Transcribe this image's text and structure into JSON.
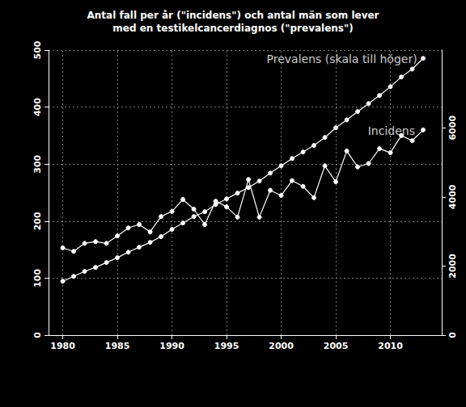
{
  "chart_data": {
    "type": "line",
    "title": "Antal fall per år (\"incidens\") och antal män som lever\nmed en testikelcancerdiagnos (\"prevalens\")",
    "x": [
      1980,
      1981,
      1982,
      1983,
      1984,
      1985,
      1986,
      1987,
      1988,
      1989,
      1990,
      1991,
      1992,
      1993,
      1994,
      1995,
      1996,
      1997,
      1998,
      1999,
      2000,
      2001,
      2002,
      2003,
      2004,
      2005,
      2006,
      2007,
      2008,
      2009,
      2010,
      2011,
      2012,
      2013
    ],
    "series": [
      {
        "name": "Incidens",
        "color": "#ffffff",
        "marker": "circle",
        "line_style": "solid",
        "values": [
          153,
          147,
          161,
          164,
          161,
          174,
          188,
          194,
          181,
          208,
          217,
          238,
          221,
          194,
          235,
          225,
          207,
          273,
          207,
          254,
          245,
          271,
          261,
          241,
          297,
          269,
          323,
          295,
          301,
          327,
          320,
          350,
          341,
          360
        ]
      },
      {
        "name": "Prevalens",
        "color": "#ffffff",
        "marker": "circle",
        "line_style": "solid",
        "axis": "y2",
        "values": [
          1560,
          1700,
          1845,
          1960,
          2100,
          2240,
          2400,
          2545,
          2685,
          2850,
          3060,
          3245,
          3430,
          3570,
          3780,
          3945,
          4110,
          4270,
          4460,
          4690,
          4900,
          5110,
          5300,
          5490,
          5720,
          6000,
          6230,
          6470,
          6700,
          6935,
          7190,
          7470,
          7700,
          8010
        ]
      }
    ],
    "xlim": [
      1978.7,
      2014.7
    ],
    "xticks": [
      1980,
      1985,
      1990,
      1995,
      2000,
      2005,
      2010
    ],
    "ylim": [
      0,
      500
    ],
    "yticks": [
      0,
      100,
      200,
      300,
      400,
      500
    ],
    "y2lim": [
      0,
      8250
    ],
    "y2ticks": [
      0,
      2000,
      4000,
      6000
    ],
    "grid": true,
    "annotations": [
      {
        "text": "Prevalens (skala till höger)",
        "x": 2012.6,
        "y": 484
      },
      {
        "text": "Incidens",
        "x": 2012.4,
        "y": 358
      }
    ]
  }
}
